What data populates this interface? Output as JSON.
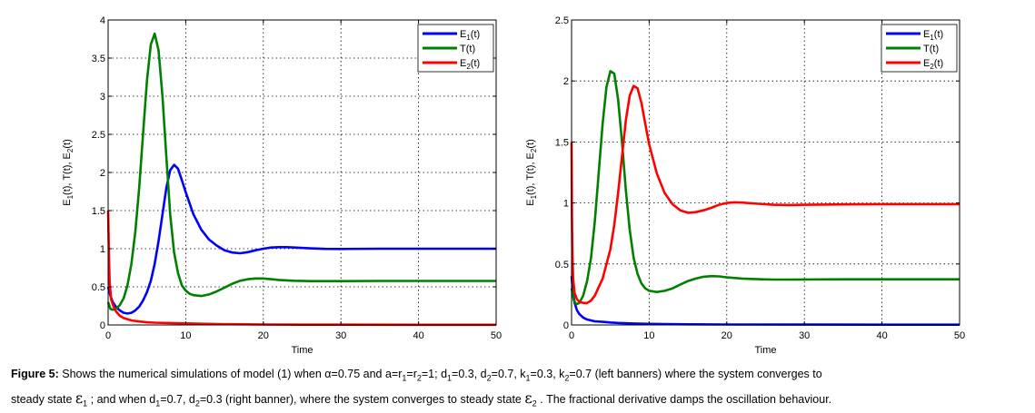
{
  "chart_data": [
    {
      "type": "line",
      "xlabel": "Time",
      "ylabel": [
        "E",
        "1",
        "(t), T(t), E",
        "2",
        "(t)"
      ],
      "xlim": [
        0,
        50
      ],
      "ylim": [
        0,
        4
      ],
      "xticks": [
        0,
        10,
        20,
        30,
        40,
        50
      ],
      "yticks": [
        0,
        0.5,
        1,
        1.5,
        2,
        2.5,
        3,
        3.5,
        4
      ],
      "grid": true,
      "legend_position": "top-right",
      "series": [
        {
          "name": [
            "E",
            "1",
            "(t)"
          ],
          "color": "#0000ff",
          "x": [
            0,
            0.3,
            0.6,
            1,
            1.5,
            2,
            2.5,
            3,
            3.5,
            4,
            4.5,
            5,
            5.5,
            6,
            6.5,
            7,
            7.5,
            8,
            8.5,
            9,
            9.5,
            10,
            11,
            12,
            13,
            14,
            15,
            16,
            17,
            18,
            19,
            20,
            21,
            22,
            23,
            24,
            26,
            28,
            30,
            35,
            40,
            45,
            50
          ],
          "y": [
            0.5,
            0.38,
            0.3,
            0.24,
            0.19,
            0.16,
            0.15,
            0.16,
            0.19,
            0.24,
            0.32,
            0.43,
            0.58,
            0.8,
            1.1,
            1.45,
            1.8,
            2.03,
            2.1,
            2.05,
            1.9,
            1.74,
            1.45,
            1.25,
            1.12,
            1.04,
            0.98,
            0.95,
            0.94,
            0.955,
            0.98,
            1.0,
            1.015,
            1.02,
            1.02,
            1.015,
            1.005,
            0.998,
            0.997,
            1.0,
            1.0,
            1.0,
            1.0
          ]
        },
        {
          "name": [
            "T(t)"
          ],
          "color": "#008000",
          "x": [
            0,
            0.3,
            0.6,
            1,
            1.5,
            2,
            2.5,
            3,
            3.5,
            4,
            4.5,
            5,
            5.5,
            6,
            6.5,
            7,
            7.5,
            8,
            8.5,
            9,
            9.5,
            10,
            10.5,
            11,
            12,
            13,
            14,
            15,
            16,
            17,
            18,
            19,
            20,
            21,
            22,
            23,
            24,
            26,
            28,
            30,
            35,
            40,
            45,
            50
          ],
          "y": [
            0.3,
            0.21,
            0.2,
            0.21,
            0.26,
            0.35,
            0.52,
            0.8,
            1.22,
            1.8,
            2.5,
            3.2,
            3.68,
            3.82,
            3.6,
            3.0,
            2.2,
            1.45,
            0.95,
            0.68,
            0.52,
            0.45,
            0.41,
            0.39,
            0.38,
            0.4,
            0.44,
            0.49,
            0.54,
            0.58,
            0.6,
            0.61,
            0.61,
            0.6,
            0.59,
            0.585,
            0.58,
            0.575,
            0.575,
            0.575,
            0.577,
            0.577,
            0.577,
            0.577
          ]
        },
        {
          "name": [
            "E",
            "2",
            "(t)"
          ],
          "color": "#ff0000",
          "x": [
            0,
            0.1,
            0.2,
            0.4,
            0.7,
            1,
            1.5,
            2,
            3,
            4,
            5,
            6,
            8,
            10,
            12,
            15,
            18,
            20,
            25,
            30,
            40,
            50
          ],
          "y": [
            1.5,
            0.9,
            0.55,
            0.33,
            0.24,
            0.18,
            0.12,
            0.09,
            0.06,
            0.045,
            0.035,
            0.03,
            0.025,
            0.02,
            0.015,
            0.01,
            0.008,
            0.006,
            0.004,
            0.003,
            0.002,
            0.002
          ]
        }
      ]
    },
    {
      "type": "line",
      "xlabel": "Time",
      "ylabel": [
        "E",
        "1",
        "(t), T(t), E",
        "2",
        "(t)"
      ],
      "xlim": [
        0,
        50
      ],
      "ylim": [
        0,
        2.5
      ],
      "xticks": [
        0,
        10,
        20,
        30,
        40,
        50
      ],
      "yticks": [
        0,
        0.5,
        1,
        1.5,
        2,
        2.5
      ],
      "grid": true,
      "legend_position": "top-right",
      "series": [
        {
          "name": [
            "E",
            "1",
            "(t)"
          ],
          "color": "#0000ff",
          "x": [
            0,
            0.2,
            0.4,
            0.7,
            1,
            1.5,
            2,
            3,
            4,
            5,
            6,
            8,
            10,
            12,
            15,
            20,
            30,
            40,
            50
          ],
          "y": [
            0.4,
            0.26,
            0.18,
            0.12,
            0.09,
            0.06,
            0.045,
            0.03,
            0.025,
            0.02,
            0.016,
            0.012,
            0.009,
            0.007,
            0.005,
            0.004,
            0.003,
            0.002,
            0.002
          ]
        },
        {
          "name": [
            "T(t)"
          ],
          "color": "#008000",
          "x": [
            0,
            0.3,
            0.6,
            1,
            1.5,
            2,
            2.5,
            3,
            3.5,
            4,
            4.5,
            5,
            5.5,
            6,
            6.5,
            7,
            7.5,
            8,
            8.5,
            9,
            9.5,
            10,
            11,
            12,
            13,
            14,
            15,
            16,
            17,
            18,
            19,
            20,
            22,
            24,
            26,
            28,
            30,
            35,
            40,
            45,
            50
          ],
          "y": [
            0.3,
            0.2,
            0.17,
            0.18,
            0.24,
            0.36,
            0.55,
            0.85,
            1.25,
            1.65,
            1.95,
            2.08,
            2.06,
            1.85,
            1.5,
            1.1,
            0.78,
            0.55,
            0.42,
            0.34,
            0.3,
            0.28,
            0.27,
            0.28,
            0.3,
            0.33,
            0.36,
            0.38,
            0.395,
            0.4,
            0.398,
            0.39,
            0.38,
            0.375,
            0.372,
            0.372,
            0.373,
            0.374,
            0.374,
            0.374,
            0.374
          ]
        },
        {
          "name": [
            "E",
            "2",
            "(t)"
          ],
          "color": "#ff0000",
          "x": [
            0,
            0.05,
            0.1,
            0.2,
            0.4,
            0.7,
            1,
            1.5,
            2,
            2.5,
            3,
            4,
            5,
            5.5,
            6,
            6.5,
            7,
            7.5,
            8,
            8.5,
            9,
            9.5,
            10,
            11,
            12,
            13,
            14,
            15,
            16,
            17,
            18,
            19,
            20,
            21,
            22,
            24,
            26,
            28,
            30,
            35,
            40,
            45,
            50
          ],
          "y": [
            1.5,
            0.9,
            0.6,
            0.38,
            0.26,
            0.21,
            0.19,
            0.18,
            0.18,
            0.2,
            0.24,
            0.38,
            0.62,
            0.82,
            1.08,
            1.38,
            1.68,
            1.88,
            1.96,
            1.94,
            1.82,
            1.65,
            1.48,
            1.24,
            1.08,
            0.99,
            0.94,
            0.92,
            0.925,
            0.94,
            0.96,
            0.985,
            1.0,
            1.005,
            1.003,
            0.993,
            0.985,
            0.983,
            0.985,
            0.988,
            0.99,
            0.99,
            0.99
          ]
        }
      ]
    }
  ],
  "caption": {
    "label": "Figure 5:",
    "line1": [
      {
        "t": " Shows the numerical simulations of model (1) when α=0.75 and a=r"
      },
      {
        "sub": "1"
      },
      {
        "t": "=r"
      },
      {
        "sub": "2"
      },
      {
        "t": "=1; d"
      },
      {
        "sub": "1"
      },
      {
        "t": "=0.3, d"
      },
      {
        "sub": "2"
      },
      {
        "t": "=0.7, k"
      },
      {
        "sub": "1"
      },
      {
        "t": "=0.3, k"
      },
      {
        "sub": "2"
      },
      {
        "t": "=0.7 (left banners) where the system converges to"
      }
    ],
    "line2": [
      {
        "t": "steady state "
      },
      {
        "state": "ε"
      },
      {
        "sub": "1"
      },
      {
        "t": " ; and when d"
      },
      {
        "sub": "1"
      },
      {
        "t": "=0.7, d"
      },
      {
        "sub": "2"
      },
      {
        "t": "=0.3 (right banner), where the system converges to steady state "
      },
      {
        "state": "ε"
      },
      {
        "sub": "2"
      },
      {
        "t": " . The fractional derivative damps the oscillation behaviour."
      }
    ]
  }
}
